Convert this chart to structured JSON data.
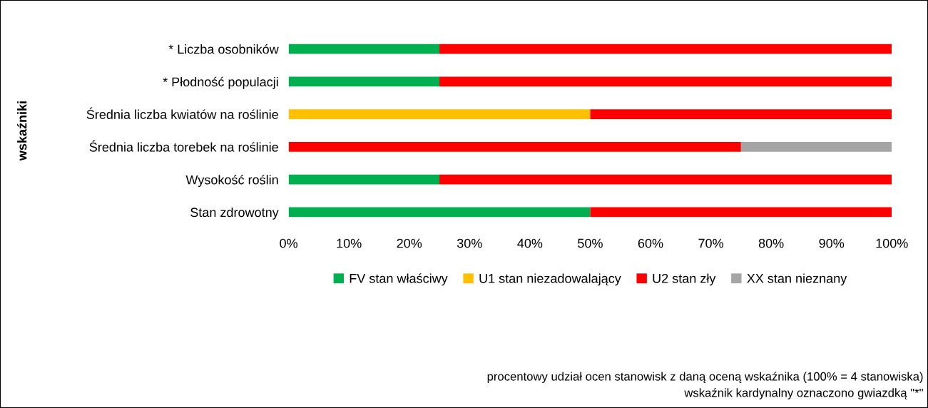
{
  "chart_data": {
    "type": "bar",
    "orientation": "horizontal",
    "stacked": true,
    "ylabel": "wskaźniki",
    "categories": [
      "* Liczba osobników",
      "* Płodność populacji",
      "Średnia liczba kwiatów na roślinie",
      "Średnia liczba torebek na roślinie",
      "Wysokość roślin",
      "Stan zdrowotny"
    ],
    "series": [
      {
        "name": "FV stan właściwy",
        "color": "#00b050",
        "values": [
          25,
          25,
          0,
          0,
          25,
          50
        ]
      },
      {
        "name": "U1 stan niezadowalający",
        "color": "#ffc000",
        "values": [
          0,
          0,
          50,
          0,
          0,
          0
        ]
      },
      {
        "name": "U2 stan zły",
        "color": "#ff0000",
        "values": [
          75,
          75,
          50,
          75,
          75,
          50
        ]
      },
      {
        "name": "XX stan nieznany",
        "color": "#a5a5a5",
        "values": [
          0,
          0,
          0,
          25,
          0,
          0
        ]
      }
    ],
    "xlim": [
      0,
      100
    ],
    "xticks": [
      {
        "value": 0,
        "label": "0%"
      },
      {
        "value": 10,
        "label": "10%"
      },
      {
        "value": 20,
        "label": "20%"
      },
      {
        "value": 30,
        "label": "30%"
      },
      {
        "value": 40,
        "label": "40%"
      },
      {
        "value": 50,
        "label": "50%"
      },
      {
        "value": 60,
        "label": "60%"
      },
      {
        "value": 70,
        "label": "70%"
      },
      {
        "value": 80,
        "label": "80%"
      },
      {
        "value": 90,
        "label": "90%"
      },
      {
        "value": 100,
        "label": "100%"
      }
    ],
    "grid": false,
    "legend": "bottom",
    "annotations": [
      "procentowy udział ocen stanowisk z daną oceną wskaźnika (100% = 4 stanowiska)",
      "wskaźnik kardynalny oznaczono gwiazdką \"*\""
    ]
  }
}
